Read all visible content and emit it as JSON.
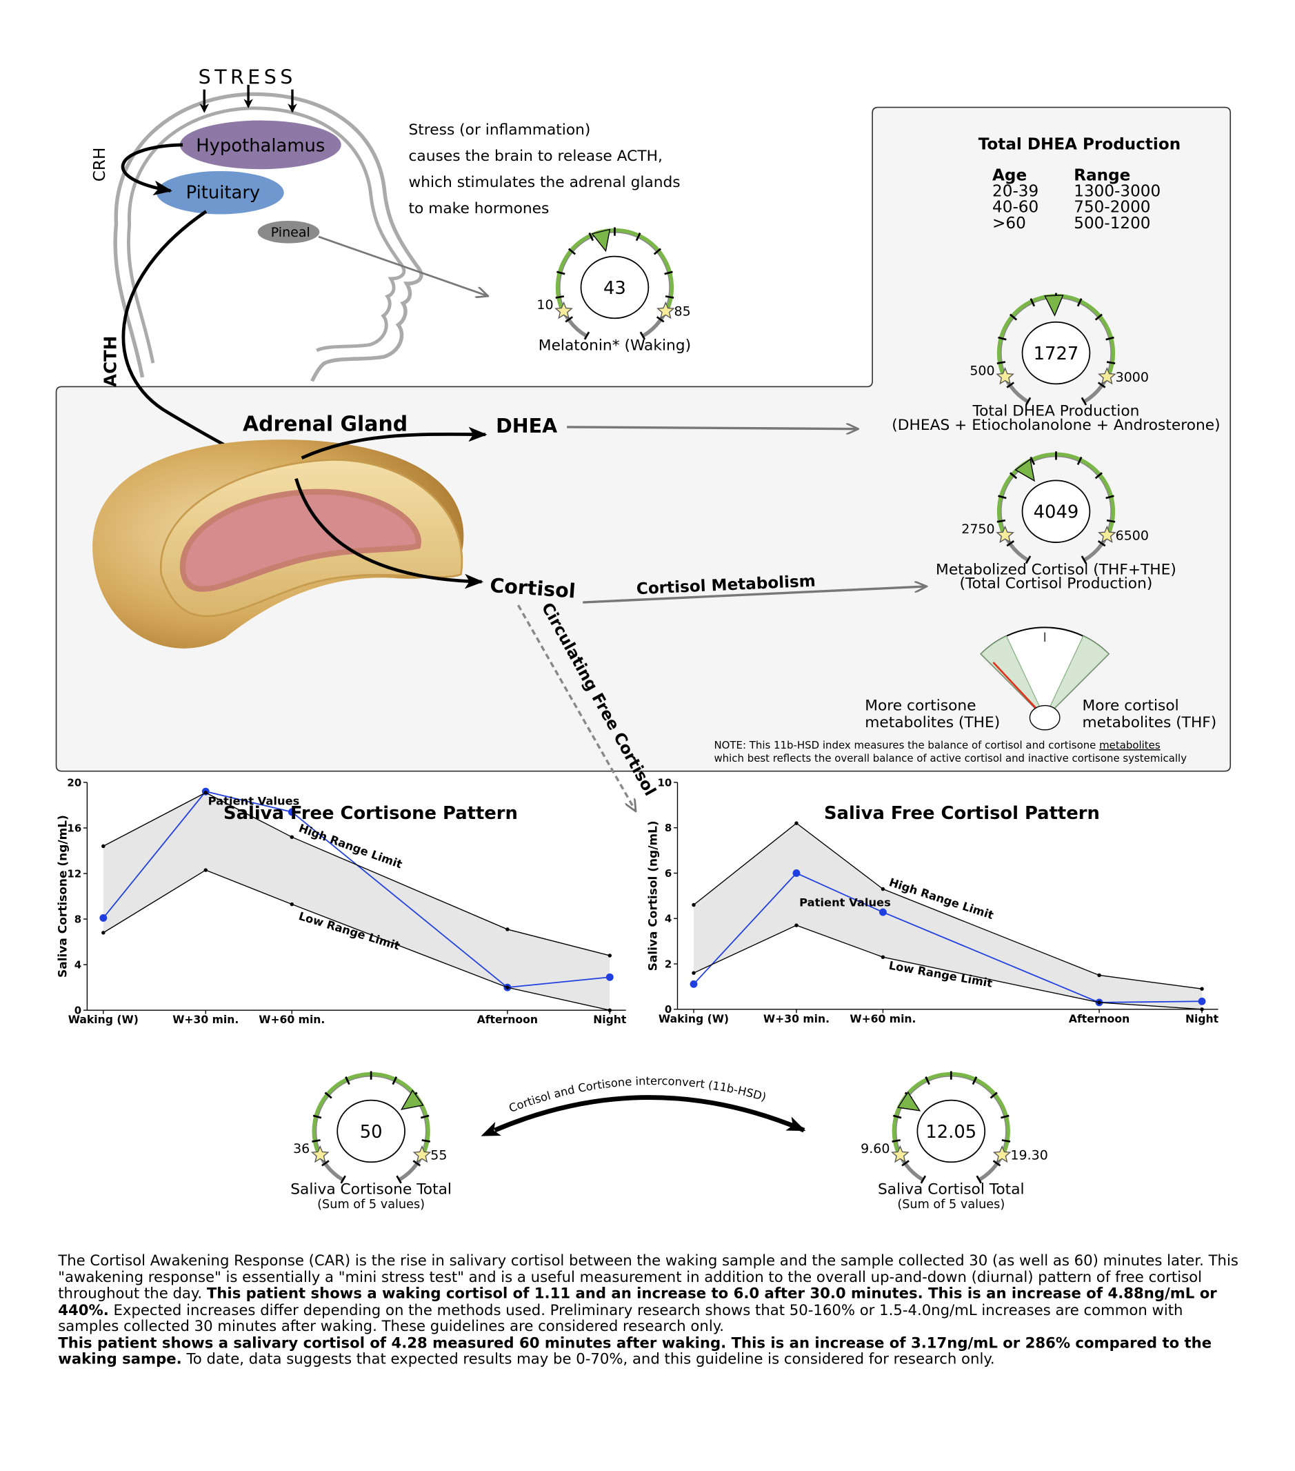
{
  "brain": {
    "stress": "STRESS",
    "hypothalamus": "Hypothalamus",
    "pituitary": "Pituitary",
    "pineal": "Pineal",
    "crh": "CRH",
    "acth": "ACTH",
    "description": [
      "Stress (or inflammation)",
      "causes the brain to release ACTH,",
      "which stimulates the adrenal glands",
      "to make hormones"
    ]
  },
  "adrenal": {
    "gland": "Adrenal Gland",
    "dhea": "DHEA",
    "cortisol": "Cortisol",
    "metabolism": "Cortisol Metabolism",
    "circulating": "Circulating Free Cortisol"
  },
  "dhea_table": {
    "title": "Total DHEA Production",
    "headers": [
      "Age",
      "Range"
    ],
    "rows": [
      [
        "20-39",
        "1300-3000"
      ],
      [
        "40-60",
        "750-2000"
      ],
      [
        ">60",
        "500-1200"
      ]
    ]
  },
  "gauges": [
    {
      "value": 43,
      "low": 10,
      "high": 85,
      "label": "Melatonin* (Waking)"
    },
    {
      "value": 1727,
      "low": 500,
      "high": 3000,
      "label": "Total DHEA Production",
      "sublabel": "(DHEAS + Etiocholanolone + Androsterone)"
    },
    {
      "value": 4049,
      "low": 2750,
      "high": 6500,
      "label": "Metabolized Cortisol (THF+THE)",
      "sublabel": "(Total Cortisol Production)"
    },
    {
      "value": 50,
      "low": 36,
      "high": 55,
      "label": "Saliva Cortisone Total",
      "sublabel": "(Sum of 5 values)"
    },
    {
      "value": 12.05,
      "low": {
        "value": 9.6,
        "label": "9.60"
      },
      "high": {
        "value": 19.3,
        "label": "19.30"
      },
      "label": "Saliva Cortisol Total",
      "sublabel": "(Sum of 5 values)"
    }
  ],
  "index": {
    "left": [
      "More cortisone",
      "metabolites (THE)"
    ],
    "right": [
      "More cortisol",
      "metabolites (THF)"
    ],
    "note": [
      "NOTE: This 11b-HSD index measures the balance of cortisol and cortisone ",
      "metabolites",
      "which best reflects the overall balance of active cortisol and inactive cortisone systemically"
    ]
  },
  "interconvert": "Cortisol and Cortisone interconvert (11b-HSD)",
  "chart_data": [
    {
      "type": "line",
      "title": "Saliva Free Cortisone Pattern",
      "ylabel": "Saliva Cortisone (ng/mL)",
      "categories": [
        "Waking (W)",
        "W+30 min.",
        "W+60 min.",
        "Afternoon",
        "Night"
      ],
      "ylim": [
        0,
        20
      ],
      "yticks": [
        0,
        4,
        8,
        12,
        16,
        20
      ],
      "band_color": "#e6e6e6",
      "series": [
        {
          "name": "Patient Values",
          "color": "#1f3fe0",
          "values": [
            8.1,
            19.2,
            17.4,
            2.0,
            2.9
          ]
        },
        {
          "name": "High Range Limit",
          "color": "#000000",
          "values": [
            14.4,
            19.1,
            15.2,
            7.1,
            4.8
          ]
        },
        {
          "name": "Low Range Limit",
          "color": "#000000",
          "values": [
            6.8,
            12.3,
            9.3,
            2.0,
            0
          ]
        }
      ]
    },
    {
      "type": "line",
      "title": "Saliva Free Cortisol Pattern",
      "ylabel": "Saliva Cortisol (ng/mL)",
      "categories": [
        "Waking (W)",
        "W+30 min.",
        "W+60 min.",
        "Afternoon",
        "Night"
      ],
      "ylim": [
        0,
        10
      ],
      "yticks": [
        0,
        2,
        4,
        6,
        8,
        10
      ],
      "band_color": "#e6e6e6",
      "series": [
        {
          "name": "Patient Values",
          "color": "#1f3fe0",
          "values": [
            1.11,
            6.0,
            4.28,
            0.3,
            0.35
          ]
        },
        {
          "name": "High Range Limit",
          "color": "#000000",
          "values": [
            4.6,
            8.2,
            5.3,
            1.5,
            0.9
          ]
        },
        {
          "name": "Low Range Limit",
          "color": "#000000",
          "values": [
            1.6,
            3.7,
            2.3,
            0.3,
            0
          ]
        }
      ]
    }
  ],
  "paragraphs": [
    [
      {
        "text": "The Cortisol Awakening Response (CAR) is the rise in salivary cortisol between the waking sample and the sample collected 30 (as well as 60) minutes later. This \"awakening response\" is essentially a \"mini stress test\" and is a useful measurement in addition to the overall up-and-down (diurnal) pattern of free cortisol throughout the day. ",
        "bold": false
      },
      {
        "text": "This patient shows a waking cortisol of 1.11 and an increase to 6.0 after 30.0 minutes. This is an increase of 4.88ng/mL or 440%.",
        "bold": true
      },
      {
        "text": " Expected increases differ depending on the methods used. Preliminary research shows that 50-160% or 1.5-4.0ng/mL increases are common with samples collected 30 minutes after waking. These guidelines are considered research only.",
        "bold": false
      }
    ],
    [
      {
        "text": "This patient shows a salivary cortisol of 4.28 measured 60 minutes after waking. This is an increase of 3.17ng/mL or 286% compared to the waking sampe.",
        "bold": true
      },
      {
        "text": " To date, data suggests that expected results may be 0-70%, and this guideline is considered for research only.",
        "bold": false
      }
    ]
  ]
}
